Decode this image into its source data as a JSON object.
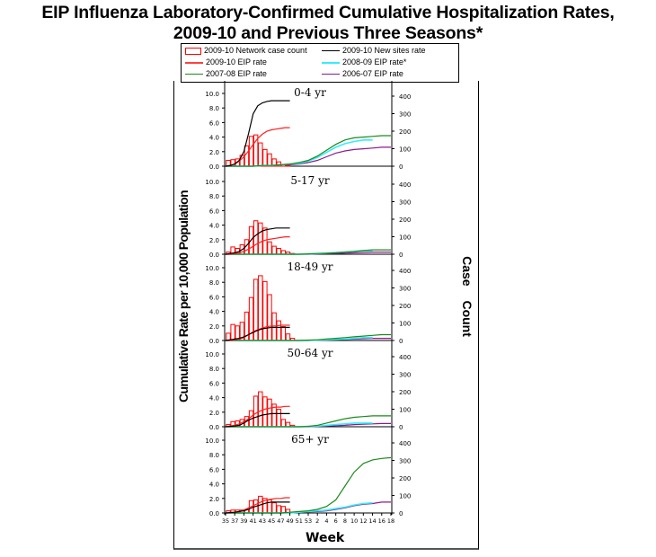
{
  "chart_data": {
    "type": "bar+line",
    "title": "EIP Influenza Laboratory-Confirmed Cumulative Hospitalization Rates,",
    "subtitle": "2009-10 and Previous Three Seasons*",
    "xlabel": "Week",
    "ylabel": "Cumulative Rate per 10,000 Population",
    "y2label": "Case Count",
    "x_ticks": [
      "35",
      "37",
      "39",
      "41",
      "43",
      "45",
      "47",
      "49",
      "51",
      "53",
      "2",
      "4",
      "6",
      "8",
      "10",
      "12",
      "14",
      "16",
      "18"
    ],
    "y_ticks": [
      "0.0",
      "2.0",
      "4.0",
      "6.0",
      "8.0",
      "10.0"
    ],
    "y2_ticks": [
      "0",
      "100",
      "200",
      "300",
      "400"
    ],
    "ylim": [
      0,
      11
    ],
    "y2lim": [
      0,
      480
    ],
    "grid": false,
    "legend_position": "top",
    "legend": [
      {
        "key": "count",
        "label": "2009-10 Network case count",
        "color": "#ff0000",
        "kind": "bar"
      },
      {
        "key": "newsites",
        "label": "2009-10 New sites rate",
        "color": "#000000",
        "kind": "line"
      },
      {
        "key": "eip0910",
        "label": "2009-10 EIP rate",
        "color": "#ff2020",
        "kind": "line"
      },
      {
        "key": "eip0809",
        "label": "2008-09 EIP rate*",
        "color": "#33eeff",
        "kind": "line"
      },
      {
        "key": "eip0708",
        "label": "2007-08 EIP rate",
        "color": "#1a8a1a",
        "kind": "line"
      },
      {
        "key": "eip0607",
        "label": "2006-07 EIP rate",
        "color": "#8b1a8b",
        "kind": "line"
      }
    ],
    "weeks_2009_10": [
      "35",
      "36",
      "37",
      "38",
      "39",
      "40",
      "41",
      "42",
      "43",
      "44",
      "45",
      "46",
      "47",
      "48",
      "49"
    ],
    "weeks_prior": [
      "35",
      "37",
      "39",
      "41",
      "43",
      "45",
      "47",
      "49",
      "51",
      "53",
      "2",
      "4",
      "6",
      "8",
      "10",
      "12",
      "14",
      "16",
      "18"
    ],
    "panels": [
      {
        "label": "0-4 yr",
        "case_count": [
          0.8,
          0.9,
          1.0,
          1.5,
          2.8,
          4.1,
          4.3,
          3.2,
          2.3,
          1.7,
          1.0,
          0.6,
          0.2,
          0.1,
          0.0
        ],
        "newsites": [
          0.0,
          0.1,
          0.3,
          0.8,
          2.0,
          4.5,
          7.2,
          8.3,
          8.7,
          8.9,
          9.0,
          9.0,
          9.0,
          9.0,
          9.0
        ],
        "eip0910": [
          0.0,
          0.1,
          0.3,
          0.7,
          1.3,
          2.1,
          3.0,
          3.8,
          4.4,
          4.8,
          5.0,
          5.1,
          5.2,
          5.3,
          5.3
        ],
        "eip0708": [
          0.0,
          0.0,
          0.0,
          0.0,
          0.1,
          0.1,
          0.2,
          0.3,
          0.5,
          0.8,
          1.4,
          2.2,
          3.0,
          3.6,
          3.9,
          4.0,
          4.1,
          4.2,
          4.2
        ],
        "eip0809": [
          0.0,
          0.0,
          0.0,
          0.0,
          0.1,
          0.1,
          0.2,
          0.3,
          0.4,
          0.7,
          1.2,
          1.9,
          2.6,
          3.1,
          3.4,
          3.6,
          3.6
        ],
        "eip0607": [
          0.0,
          0.0,
          0.0,
          0.0,
          0.1,
          0.1,
          0.2,
          0.2,
          0.3,
          0.5,
          0.8,
          1.3,
          1.8,
          2.1,
          2.3,
          2.4,
          2.5,
          2.6,
          2.6
        ]
      },
      {
        "label": "5-17 yr",
        "case_count": [
          0.3,
          1.0,
          0.8,
          1.3,
          2.0,
          3.8,
          4.6,
          4.3,
          3.6,
          1.7,
          1.1,
          0.8,
          0.5,
          0.3,
          0.1
        ],
        "newsites": [
          0.0,
          0.1,
          0.2,
          0.4,
          0.8,
          1.5,
          2.3,
          2.8,
          3.2,
          3.4,
          3.5,
          3.6,
          3.6,
          3.6,
          3.6
        ],
        "eip0910": [
          0.0,
          0.0,
          0.1,
          0.2,
          0.4,
          0.7,
          1.1,
          1.5,
          1.8,
          2.0,
          2.1,
          2.2,
          2.3,
          2.4,
          2.4
        ],
        "eip0708": [
          0.0,
          0.0,
          0.0,
          0.0,
          0.0,
          0.0,
          0.0,
          0.0,
          0.0,
          0.05,
          0.1,
          0.15,
          0.2,
          0.3,
          0.4,
          0.5,
          0.6,
          0.6,
          0.6
        ],
        "eip0809": [
          0.0,
          0.0,
          0.0,
          0.0,
          0.0,
          0.0,
          0.0,
          0.0,
          0.0,
          0.05,
          0.1,
          0.15,
          0.25,
          0.3,
          0.4,
          0.5,
          0.5
        ],
        "eip0607": [
          0.0,
          0.0,
          0.0,
          0.0,
          0.0,
          0.0,
          0.0,
          0.0,
          0.0,
          0.0,
          0.05,
          0.1,
          0.1,
          0.15,
          0.2,
          0.25,
          0.3,
          0.3,
          0.3
        ]
      },
      {
        "label": "18-49 yr",
        "case_count": [
          1.0,
          2.2,
          2.0,
          2.5,
          3.9,
          5.9,
          8.4,
          8.9,
          8.1,
          6.3,
          3.8,
          2.7,
          1.9,
          0.9,
          0.3
        ],
        "newsites": [
          0.0,
          0.1,
          0.2,
          0.3,
          0.5,
          0.8,
          1.1,
          1.4,
          1.6,
          1.7,
          1.8,
          1.8,
          1.8,
          1.8,
          1.8
        ],
        "eip0910": [
          0.0,
          0.0,
          0.1,
          0.2,
          0.4,
          0.8,
          1.2,
          1.5,
          1.7,
          1.9,
          2.0,
          2.0,
          2.1,
          2.1,
          2.1
        ],
        "eip0708": [
          0.0,
          0.0,
          0.0,
          0.0,
          0.0,
          0.0,
          0.0,
          0.0,
          0.0,
          0.05,
          0.1,
          0.2,
          0.3,
          0.4,
          0.5,
          0.6,
          0.7,
          0.8,
          0.8
        ],
        "eip0809": [
          0.0,
          0.0,
          0.0,
          0.0,
          0.0,
          0.0,
          0.0,
          0.0,
          0.0,
          0.0,
          0.05,
          0.1,
          0.15,
          0.2,
          0.3,
          0.4,
          0.4
        ],
        "eip0607": [
          0.0,
          0.0,
          0.0,
          0.0,
          0.0,
          0.0,
          0.0,
          0.0,
          0.0,
          0.0,
          0.05,
          0.05,
          0.1,
          0.15,
          0.2,
          0.25,
          0.3,
          0.3,
          0.3
        ]
      },
      {
        "label": "50-64 yr",
        "case_count": [
          0.3,
          0.7,
          0.8,
          1.0,
          1.4,
          2.2,
          4.2,
          4.8,
          4.1,
          3.8,
          3.1,
          2.4,
          1.0,
          0.6,
          0.2
        ],
        "newsites": [
          0.0,
          0.05,
          0.1,
          0.2,
          0.5,
          0.9,
          1.2,
          1.4,
          1.6,
          1.7,
          1.8,
          1.8,
          1.8,
          1.8,
          1.8
        ],
        "eip0910": [
          0.0,
          0.1,
          0.2,
          0.4,
          0.7,
          1.1,
          1.6,
          2.0,
          2.3,
          2.5,
          2.6,
          2.7,
          2.7,
          2.8,
          2.8
        ],
        "eip0708": [
          0.0,
          0.0,
          0.0,
          0.0,
          0.0,
          0.0,
          0.0,
          0.0,
          0.0,
          0.05,
          0.2,
          0.5,
          0.8,
          1.1,
          1.3,
          1.4,
          1.5,
          1.5,
          1.5
        ],
        "eip0809": [
          0.0,
          0.0,
          0.0,
          0.0,
          0.0,
          0.0,
          0.0,
          0.0,
          0.0,
          0.05,
          0.1,
          0.2,
          0.3,
          0.4,
          0.5,
          0.5,
          0.5
        ],
        "eip0607": [
          0.0,
          0.0,
          0.0,
          0.0,
          0.0,
          0.0,
          0.0,
          0.0,
          0.0,
          0.0,
          0.05,
          0.1,
          0.15,
          0.2,
          0.3,
          0.35,
          0.4,
          0.45,
          0.45
        ]
      },
      {
        "label": "65+ yr",
        "case_count": [
          0.3,
          0.4,
          0.4,
          0.4,
          0.5,
          1.7,
          1.8,
          2.3,
          2.0,
          1.8,
          1.4,
          1.0,
          0.9,
          0.5,
          0.1
        ],
        "newsites": [
          0.0,
          0.05,
          0.1,
          0.2,
          0.3,
          0.5,
          0.8,
          1.0,
          1.2,
          1.4,
          1.5,
          1.5,
          1.5,
          1.5,
          1.5
        ],
        "eip0910": [
          0.0,
          0.05,
          0.1,
          0.2,
          0.4,
          0.7,
          1.0,
          1.3,
          1.6,
          1.8,
          1.9,
          2.0,
          2.0,
          2.1,
          2.1
        ],
        "eip0708": [
          0.0,
          0.0,
          0.0,
          0.0,
          0.0,
          0.0,
          0.0,
          0.1,
          0.2,
          0.3,
          0.5,
          0.9,
          1.8,
          3.7,
          5.6,
          6.8,
          7.3,
          7.5,
          7.6
        ],
        "eip0809": [
          0.0,
          0.0,
          0.0,
          0.0,
          0.0,
          0.0,
          0.0,
          0.0,
          0.1,
          0.2,
          0.3,
          0.4,
          0.6,
          0.8,
          1.1,
          1.3,
          1.4
        ],
        "eip0607": [
          0.0,
          0.0,
          0.0,
          0.0,
          0.0,
          0.0,
          0.0,
          0.0,
          0.1,
          0.15,
          0.2,
          0.3,
          0.5,
          0.7,
          1.0,
          1.2,
          1.3,
          1.5,
          1.5
        ]
      }
    ]
  }
}
